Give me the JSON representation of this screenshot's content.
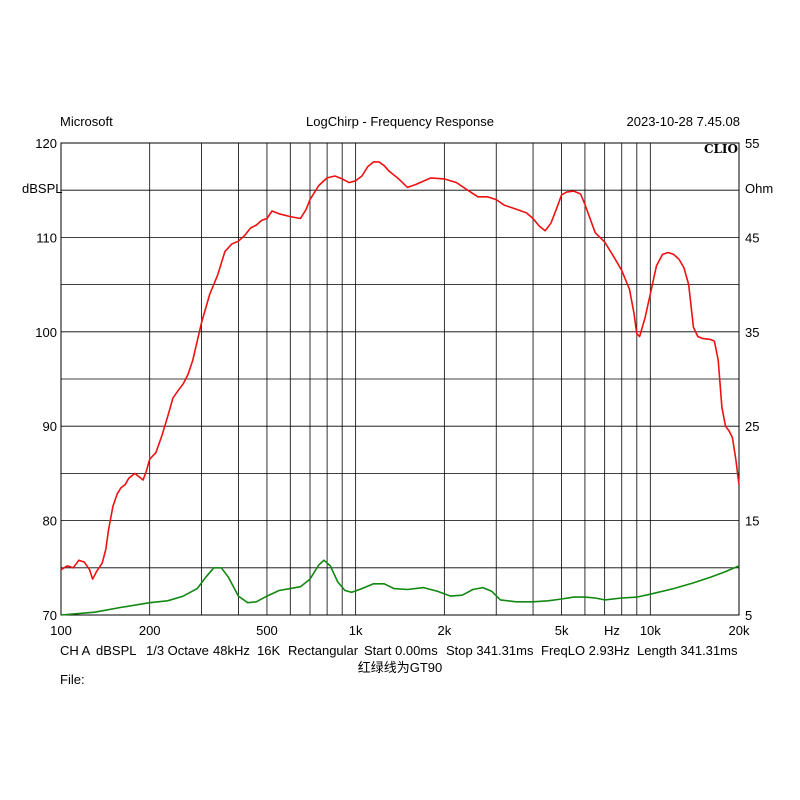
{
  "header": {
    "left": "Microsoft",
    "center": "LogChirp - Frequency Response",
    "right": "2023-10-28 7.45.08"
  },
  "brand": "CLIO",
  "colors": {
    "spl": "#ee1111",
    "impedance": "#118811",
    "grid": "#000000"
  },
  "info_line": {
    "items": [
      "CH A",
      "dBSPL",
      "1/3 Octave",
      "48kHz",
      "16K",
      "Rectangular",
      "Start 0.00ms",
      "Stop 341.31ms",
      "FreqLO 2.93Hz",
      "Length 341.31ms"
    ],
    "note": "红绿线为GT90",
    "file": "File:"
  },
  "chart_data": {
    "type": "line",
    "title": "LogChirp - Frequency Response",
    "xscale": "log",
    "xlim": [
      100,
      20000
    ],
    "x_ticks": [
      {
        "v": 100,
        "label": "100"
      },
      {
        "v": 200,
        "label": "200"
      },
      {
        "v": 500,
        "label": "500"
      },
      {
        "v": 1000,
        "label": "1k"
      },
      {
        "v": 2000,
        "label": "2k"
      },
      {
        "v": 5000,
        "label": "5k"
      },
      {
        "v": 10000,
        "label": "10k"
      },
      {
        "v": 20000,
        "label": "20k"
      }
    ],
    "x_unit": "Hz",
    "y_left": {
      "label": "dBSPL",
      "lim": [
        70,
        120
      ],
      "ticks": [
        120,
        110,
        100,
        90,
        80,
        70
      ]
    },
    "y_right": {
      "label": "Ohm",
      "lim": [
        5,
        55
      ],
      "ticks": [
        55,
        45,
        35,
        25,
        15,
        5
      ]
    },
    "grid": true,
    "series": [
      {
        "axis": "left",
        "color": "#ee1111",
        "points": [
          [
            100,
            74.8
          ],
          [
            105,
            75.2
          ],
          [
            110,
            75
          ],
          [
            115,
            75.8
          ],
          [
            120,
            75.6
          ],
          [
            125,
            74.8
          ],
          [
            128,
            73.8
          ],
          [
            132,
            74.6
          ],
          [
            138,
            75.5
          ],
          [
            142,
            77
          ],
          [
            145,
            79
          ],
          [
            150,
            81.5
          ],
          [
            155,
            82.8
          ],
          [
            160,
            83.5
          ],
          [
            165,
            83.8
          ],
          [
            170,
            84.5
          ],
          [
            178,
            85
          ],
          [
            185,
            84.6
          ],
          [
            190,
            84.3
          ],
          [
            195,
            85.3
          ],
          [
            200,
            86.5
          ],
          [
            210,
            87.2
          ],
          [
            220,
            89
          ],
          [
            230,
            91
          ],
          [
            240,
            93
          ],
          [
            250,
            93.8
          ],
          [
            260,
            94.5
          ],
          [
            270,
            95.5
          ],
          [
            280,
            97
          ],
          [
            290,
            99
          ],
          [
            300,
            101
          ],
          [
            320,
            104
          ],
          [
            340,
            106
          ],
          [
            360,
            108.5
          ],
          [
            380,
            109.3
          ],
          [
            400,
            109.6
          ],
          [
            420,
            110.2
          ],
          [
            440,
            111
          ],
          [
            460,
            111.3
          ],
          [
            480,
            111.8
          ],
          [
            500,
            112
          ],
          [
            520,
            112.8
          ],
          [
            550,
            112.5
          ],
          [
            600,
            112.2
          ],
          [
            650,
            112
          ],
          [
            680,
            113
          ],
          [
            700,
            114
          ],
          [
            750,
            115.5
          ],
          [
            800,
            116.3
          ],
          [
            850,
            116.5
          ],
          [
            900,
            116.2
          ],
          [
            950,
            115.8
          ],
          [
            1000,
            116
          ],
          [
            1050,
            116.5
          ],
          [
            1100,
            117.5
          ],
          [
            1150,
            118
          ],
          [
            1200,
            118
          ],
          [
            1250,
            117.6
          ],
          [
            1300,
            117
          ],
          [
            1400,
            116.2
          ],
          [
            1500,
            115.3
          ],
          [
            1600,
            115.6
          ],
          [
            1800,
            116.3
          ],
          [
            2000,
            116.2
          ],
          [
            2200,
            115.8
          ],
          [
            2400,
            115
          ],
          [
            2600,
            114.3
          ],
          [
            2800,
            114.3
          ],
          [
            3000,
            114
          ],
          [
            3200,
            113.4
          ],
          [
            3500,
            113
          ],
          [
            3800,
            112.6
          ],
          [
            4000,
            112
          ],
          [
            4200,
            111.2
          ],
          [
            4400,
            110.7
          ],
          [
            4600,
            111.5
          ],
          [
            4800,
            113
          ],
          [
            5000,
            114.5
          ],
          [
            5200,
            114.8
          ],
          [
            5500,
            114.9
          ],
          [
            5800,
            114.6
          ],
          [
            6000,
            113.5
          ],
          [
            6500,
            110.5
          ],
          [
            7000,
            109.5
          ],
          [
            7500,
            108
          ],
          [
            8000,
            106.5
          ],
          [
            8500,
            104.5
          ],
          [
            8800,
            102
          ],
          [
            9000,
            99.8
          ],
          [
            9200,
            99.5
          ],
          [
            9600,
            101.5
          ],
          [
            10000,
            104
          ],
          [
            10500,
            107
          ],
          [
            11000,
            108.2
          ],
          [
            11500,
            108.4
          ],
          [
            12000,
            108.2
          ],
          [
            12500,
            107.7
          ],
          [
            13000,
            106.8
          ],
          [
            13500,
            105
          ],
          [
            14000,
            100.5
          ],
          [
            14500,
            99.5
          ],
          [
            15000,
            99.3
          ],
          [
            16000,
            99.2
          ],
          [
            16500,
            99
          ],
          [
            17000,
            97
          ],
          [
            17500,
            92
          ],
          [
            18000,
            90
          ],
          [
            18500,
            89.5
          ],
          [
            19000,
            88.8
          ],
          [
            19500,
            86.5
          ],
          [
            20000,
            83.8
          ]
        ]
      },
      {
        "axis": "right",
        "color": "#118811",
        "points": [
          [
            100,
            5
          ],
          [
            130,
            5.3
          ],
          [
            160,
            5.8
          ],
          [
            200,
            6.3
          ],
          [
            230,
            6.5
          ],
          [
            260,
            7
          ],
          [
            290,
            7.8
          ],
          [
            310,
            9
          ],
          [
            330,
            10
          ],
          [
            350,
            10
          ],
          [
            370,
            9
          ],
          [
            400,
            7
          ],
          [
            430,
            6.3
          ],
          [
            460,
            6.4
          ],
          [
            500,
            7
          ],
          [
            550,
            7.6
          ],
          [
            600,
            7.8
          ],
          [
            650,
            8
          ],
          [
            700,
            8.8
          ],
          [
            750,
            10.3
          ],
          [
            780,
            10.8
          ],
          [
            820,
            10.2
          ],
          [
            870,
            8.5
          ],
          [
            920,
            7.6
          ],
          [
            970,
            7.4
          ],
          [
            1050,
            7.8
          ],
          [
            1150,
            8.3
          ],
          [
            1250,
            8.3
          ],
          [
            1350,
            7.8
          ],
          [
            1500,
            7.7
          ],
          [
            1700,
            7.9
          ],
          [
            1900,
            7.5
          ],
          [
            2100,
            7
          ],
          [
            2300,
            7.1
          ],
          [
            2500,
            7.7
          ],
          [
            2700,
            7.9
          ],
          [
            2900,
            7.5
          ],
          [
            3100,
            6.6
          ],
          [
            3500,
            6.4
          ],
          [
            4000,
            6.4
          ],
          [
            4500,
            6.5
          ],
          [
            5000,
            6.7
          ],
          [
            5500,
            6.9
          ],
          [
            6000,
            6.9
          ],
          [
            6500,
            6.8
          ],
          [
            7000,
            6.6
          ],
          [
            8000,
            6.8
          ],
          [
            9000,
            6.9
          ],
          [
            10000,
            7.2
          ],
          [
            12000,
            7.8
          ],
          [
            14000,
            8.4
          ],
          [
            16000,
            9
          ],
          [
            18000,
            9.6
          ],
          [
            20000,
            10.2
          ]
        ]
      }
    ]
  }
}
